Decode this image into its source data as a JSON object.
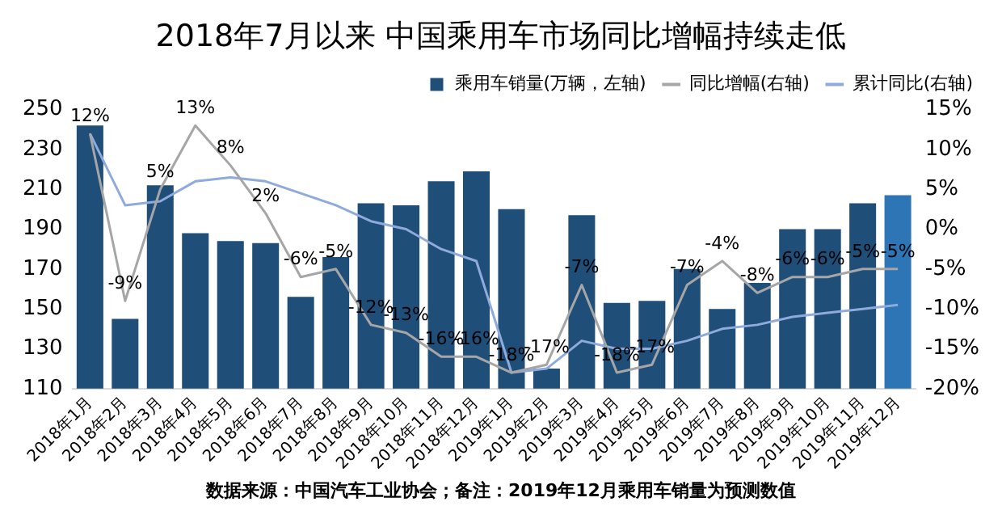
{
  "chart_data": {
    "type": "bar",
    "title": "2018年7月以来 中国乘用车市场同比增幅持续走低",
    "categories": [
      "2018年1月",
      "2018年2月",
      "2018年3月",
      "2018年4月",
      "2018年5月",
      "2018年6月",
      "2018年7月",
      "2018年8月",
      "2018年9月",
      "2018年10月",
      "2018年11月",
      "2018年12月",
      "2019年1月",
      "2019年2月",
      "2019年3月",
      "2019年4月",
      "2019年5月",
      "2019年6月",
      "2019年7月",
      "2019年8月",
      "2019年9月",
      "2019年10月",
      "2019年11月",
      "2019年12月"
    ],
    "series": [
      {
        "name": "乘用车销量(万辆，左轴)",
        "color": "#1f4e79",
        "colors": [
          "#1f4e79",
          "#1f4e79",
          "#1f4e79",
          "#1f4e79",
          "#1f4e79",
          "#1f4e79",
          "#1f4e79",
          "#1f4e79",
          "#1f4e79",
          "#1f4e79",
          "#1f4e79",
          "#1f4e79",
          "#1f4e79",
          "#1f4e79",
          "#1f4e79",
          "#1f4e79",
          "#1f4e79",
          "#1f4e79",
          "#1f4e79",
          "#1f4e79",
          "#1f4e79",
          "#1f4e79",
          "#1f4e79",
          "#2e75b6"
        ],
        "values": [
          242,
          145,
          212,
          188,
          184,
          183,
          156,
          176,
          203,
          202,
          214,
          219,
          200,
          120,
          197,
          153,
          154,
          170,
          150,
          163,
          190,
          190,
          203,
          207
        ]
      },
      {
        "name": "同比增幅(右轴)",
        "type": "line",
        "axis": "y2",
        "color": "#a6a6a6",
        "values": [
          12,
          -9,
          5,
          13,
          8,
          2,
          -6,
          -5,
          -12,
          -13,
          -16,
          -16,
          -18,
          -17,
          -7,
          -18,
          -17,
          -7,
          -4,
          -8,
          -6,
          -6,
          -5,
          -5
        ],
        "value_labels": [
          "12%",
          "-9%",
          "5%",
          "13%",
          "8%",
          "2%",
          "-6%",
          "-5%",
          "-12%",
          "-13%",
          "-16%",
          "-16%",
          "-18%",
          "-17%",
          "-7%",
          "-18%",
          "-17%",
          "-7%",
          "-4%",
          "-8%",
          "-6%",
          "-6%",
          "-5%",
          "-5%"
        ]
      },
      {
        "name": "累计同比(右轴)",
        "type": "line",
        "axis": "y2",
        "color": "#8faadc",
        "values": [
          12,
          3,
          3.5,
          6,
          6.5,
          6,
          4.5,
          3,
          1,
          0,
          -2.5,
          -4,
          -18,
          -17.5,
          -14,
          -15,
          -15,
          -14,
          -12.5,
          -12,
          -11,
          -10.5,
          -10,
          -9.5
        ]
      }
    ],
    "ylim": [
      110,
      250
    ],
    "yticks": [
      110,
      130,
      150,
      170,
      190,
      210,
      230,
      250
    ],
    "y2lim": [
      -20,
      15
    ],
    "y2ticks": [
      {
        "value": -20,
        "label": "-20%"
      },
      {
        "value": -15,
        "label": "-15%"
      },
      {
        "value": -10,
        "label": "-10%"
      },
      {
        "value": -5,
        "label": "-5%"
      },
      {
        "value": 0,
        "label": "0%"
      },
      {
        "value": 5,
        "label": "5%"
      },
      {
        "value": 10,
        "label": "10%"
      },
      {
        "value": 15,
        "label": "15%"
      }
    ],
    "grid": false,
    "legend": "top right",
    "marker": "none",
    "annotations": [
      "数据来源：中国汽车工业协会；备注：2019年12月乘用车销量为预测数值"
    ]
  }
}
